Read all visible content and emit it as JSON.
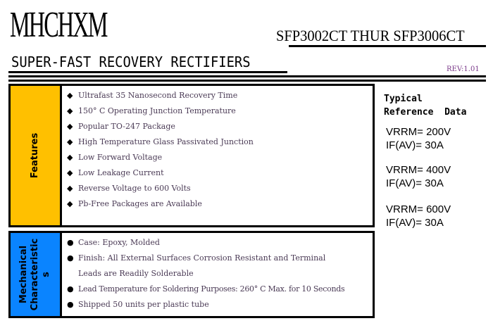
{
  "header": {
    "logo": "MHCHXM",
    "model_range": "SFP3002CT THUR SFP3006CT",
    "subtitle": "SUPER-FAST RECOVERY RECTIFIERS",
    "revision": "REV:1.01"
  },
  "features": {
    "label": "Features",
    "color": "#FFC000",
    "bullet_icon": "diamond",
    "items": [
      "Ultrafast 35 Nanosecond Recovery Time",
      "150° C Operating Junction Temperature",
      "Popular TO-247 Package",
      "High Temperature Glass Passivated Junction",
      "Low Forward Voltage",
      "Low Leakage Current",
      "Reverse Voltage to 600 Volts",
      "Pb-Free Packages are Available"
    ]
  },
  "mechanical": {
    "label_line1": "Mechanical",
    "label_line2": "Characteristic",
    "label_line3": "s",
    "color": "#0A84FF",
    "bullet_icon": "circle",
    "items": [
      "Case: Epoxy, Molded",
      "Finish: All External Surfaces Corrosion Resistant and Terminal",
      "Leads are Readily Solderable",
      "Lead Temperature for Soldering Purposes: 260° C Max. for 10 Seconds",
      "Shipped 50 units per plastic tube"
    ]
  },
  "reference": {
    "title_line1": "Typical",
    "title_line2": "Reference  Data",
    "specs": [
      {
        "vrrm": "VRRM= 200V",
        "ifav": "IF(AV)= 30A"
      },
      {
        "vrrm": "VRRM= 400V",
        "ifav": "IF(AV)= 30A"
      },
      {
        "vrrm": "VRRM= 600V",
        "ifav": "IF(AV)= 30A"
      }
    ]
  }
}
